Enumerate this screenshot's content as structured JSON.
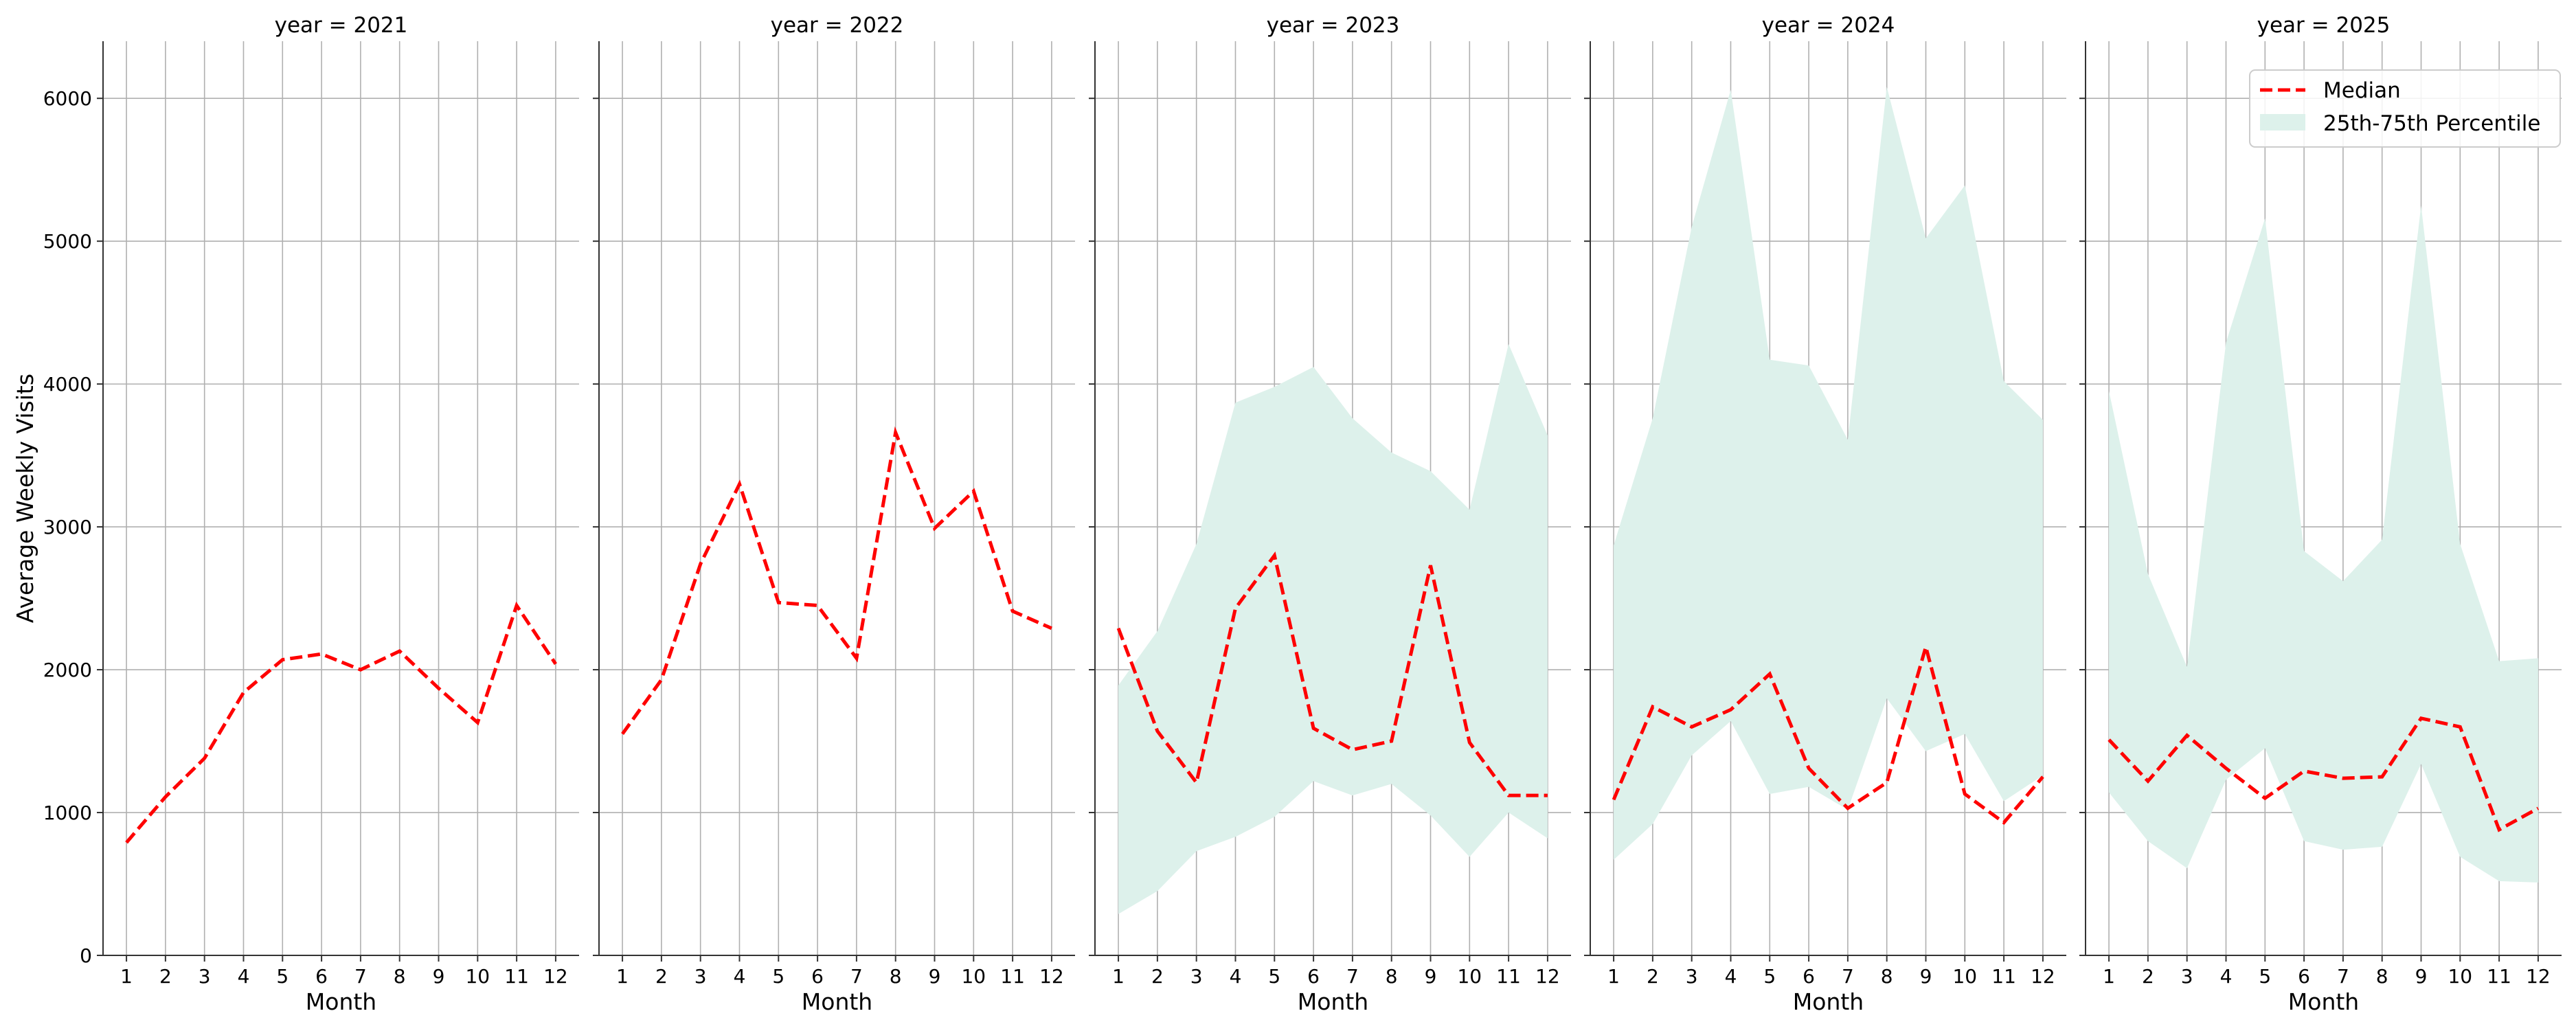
{
  "chart_data": {
    "type": "line",
    "facet_variable": "year",
    "xlabel": "Month",
    "ylabel": "Average Weekly Visits",
    "xlim": [
      0.4,
      12.6
    ],
    "ylim": [
      0,
      6400
    ],
    "x_ticks": [
      1,
      2,
      3,
      4,
      5,
      6,
      7,
      8,
      9,
      10,
      11,
      12
    ],
    "y_ticks": [
      0,
      1000,
      2000,
      3000,
      4000,
      5000,
      6000
    ],
    "grid": true,
    "legend": {
      "placement": "top-right",
      "entries": [
        "Median",
        "25th-75th Percentile"
      ]
    },
    "colors": {
      "median": "#ff0000",
      "band": "#ddf1eb",
      "grid": "#b0b0b0",
      "axis": "#333333"
    },
    "panels": [
      {
        "title": "year = 2021",
        "x": [
          1,
          2,
          3,
          4,
          5,
          6,
          7,
          8,
          9,
          10,
          11,
          12
        ],
        "median": [
          790,
          1110,
          1380,
          1840,
          2070,
          2110,
          2000,
          2130,
          1870,
          1630,
          2450,
          2040
        ],
        "p25": null,
        "p75": null
      },
      {
        "title": "year = 2022",
        "x": [
          1,
          2,
          3,
          4,
          5,
          6,
          7,
          8,
          9,
          10,
          11,
          12
        ],
        "median": [
          1550,
          1930,
          2740,
          3300,
          2470,
          2450,
          2080,
          3660,
          2990,
          3250,
          2410,
          2290
        ],
        "p25": null,
        "p75": null
      },
      {
        "title": "year = 2023",
        "x": [
          1,
          2,
          3,
          4,
          5,
          6,
          7,
          8,
          9,
          10,
          11,
          12
        ],
        "median": [
          2290,
          1570,
          1210,
          2430,
          2800,
          1590,
          1440,
          1500,
          2730,
          1490,
          1120,
          1120
        ],
        "p25": [
          290,
          450,
          730,
          830,
          970,
          1220,
          1120,
          1200,
          980,
          690,
          1000,
          820
        ],
        "p75": [
          1890,
          2270,
          2880,
          3870,
          3980,
          4120,
          3760,
          3520,
          3390,
          3120,
          4280,
          3640
        ]
      },
      {
        "title": "year = 2024",
        "x": [
          1,
          2,
          3,
          4,
          5,
          6,
          7,
          8,
          9,
          10,
          11,
          12
        ],
        "median": [
          1090,
          1740,
          1600,
          1720,
          1970,
          1310,
          1030,
          1210,
          2160,
          1130,
          930,
          1250
        ],
        "p25": [
          670,
          920,
          1400,
          1640,
          1130,
          1180,
          1020,
          1800,
          1430,
          1550,
          1080,
          1260
        ],
        "p75": [
          2870,
          3760,
          5100,
          6060,
          4170,
          4130,
          3610,
          6080,
          5020,
          5390,
          4020,
          3750
        ]
      },
      {
        "title": "year = 2025",
        "x": [
          1,
          2,
          3,
          4,
          5,
          6,
          7,
          8,
          9,
          10,
          11,
          12
        ],
        "median": [
          1510,
          1220,
          1540,
          1310,
          1100,
          1290,
          1240,
          1250,
          1660,
          1600,
          880,
          1030
        ],
        "p25": [
          1140,
          800,
          610,
          1230,
          1450,
          800,
          740,
          760,
          1340,
          690,
          520,
          510
        ],
        "p75": [
          3950,
          2670,
          2020,
          4290,
          5160,
          2830,
          2620,
          2910,
          5250,
          2880,
          2060,
          2080
        ]
      }
    ]
  }
}
